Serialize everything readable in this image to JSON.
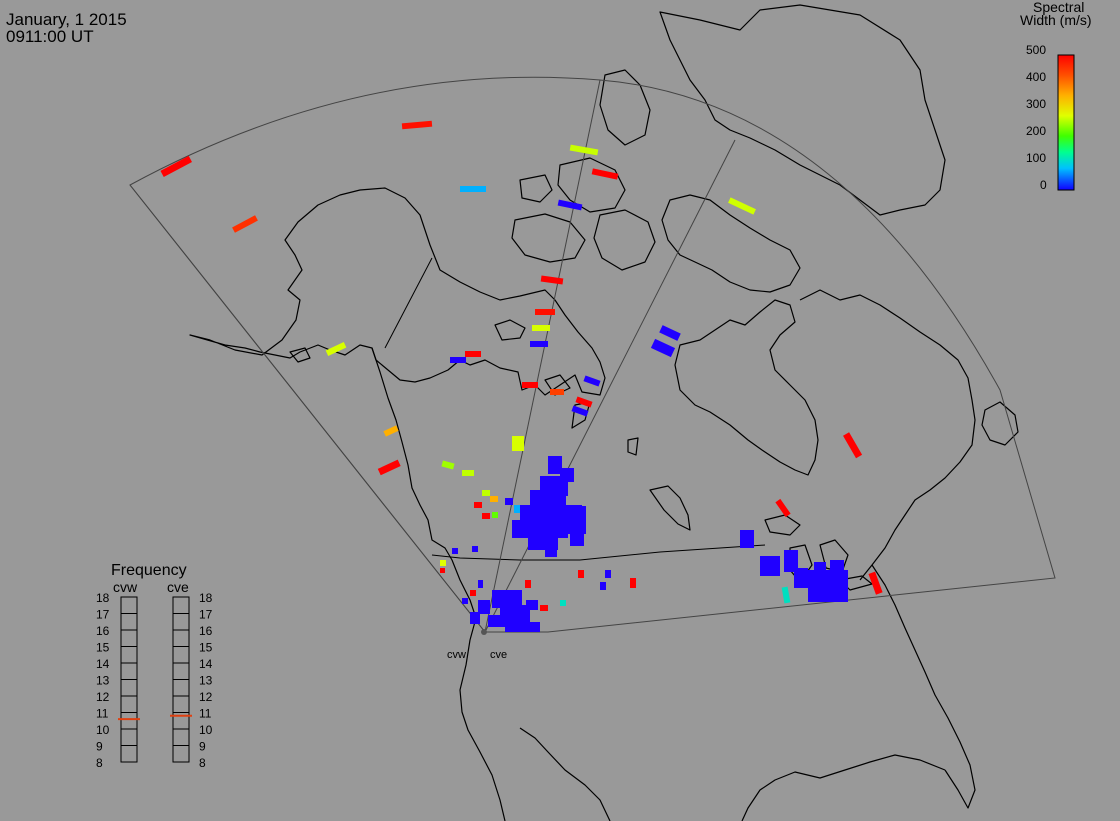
{
  "header": {
    "date": "January, 1 2015",
    "time": "0911:00 UT"
  },
  "colorbar": {
    "title_line1": "Spectral",
    "title_line2": "Width (m/s)",
    "ticks": [
      "500",
      "400",
      "300",
      "200",
      "100",
      "0"
    ],
    "colors": [
      "#ff0000",
      "#ff5000",
      "#ffa000",
      "#e0ff00",
      "#60ff00",
      "#00ff80",
      "#00c0ff",
      "#0040ff",
      "#2000ff"
    ]
  },
  "frequency": {
    "title": "Frequency",
    "radars": [
      {
        "name": "cvw",
        "value_mhz": 10.6
      },
      {
        "name": "cve",
        "value_mhz": 10.8
      }
    ],
    "scale": [
      "18",
      "17",
      "16",
      "15",
      "14",
      "13",
      "12",
      "11",
      "10",
      "9",
      "8"
    ],
    "marker_color": "#e04010"
  },
  "sites": [
    "cvw",
    "cve"
  ],
  "echoes": [
    {
      "w": 480
    },
    {
      "w": 470
    },
    {
      "w": 430
    },
    {
      "w": 230
    },
    {
      "w": 480
    },
    {
      "w": 120
    },
    {
      "w": 10
    },
    {
      "w": 240
    },
    {
      "w": 470
    },
    {
      "w": 480
    },
    {
      "w": 240
    },
    {
      "w": 20
    },
    {
      "w": 250
    },
    {
      "w": 480
    },
    {
      "w": 10
    },
    {
      "w": 480
    },
    {
      "w": 420
    },
    {
      "w": 10
    },
    {
      "w": 480
    },
    {
      "w": 20
    },
    {
      "w": 330
    },
    {
      "w": 480
    },
    {
      "w": 250
    },
    {
      "w": 240
    },
    {
      "w": 470
    },
    {
      "w": 490
    },
    {
      "w": 15
    },
    {
      "w": 15
    },
    {
      "w": 480
    },
    {
      "w": 150
    },
    {
      "w": 470
    }
  ]
}
